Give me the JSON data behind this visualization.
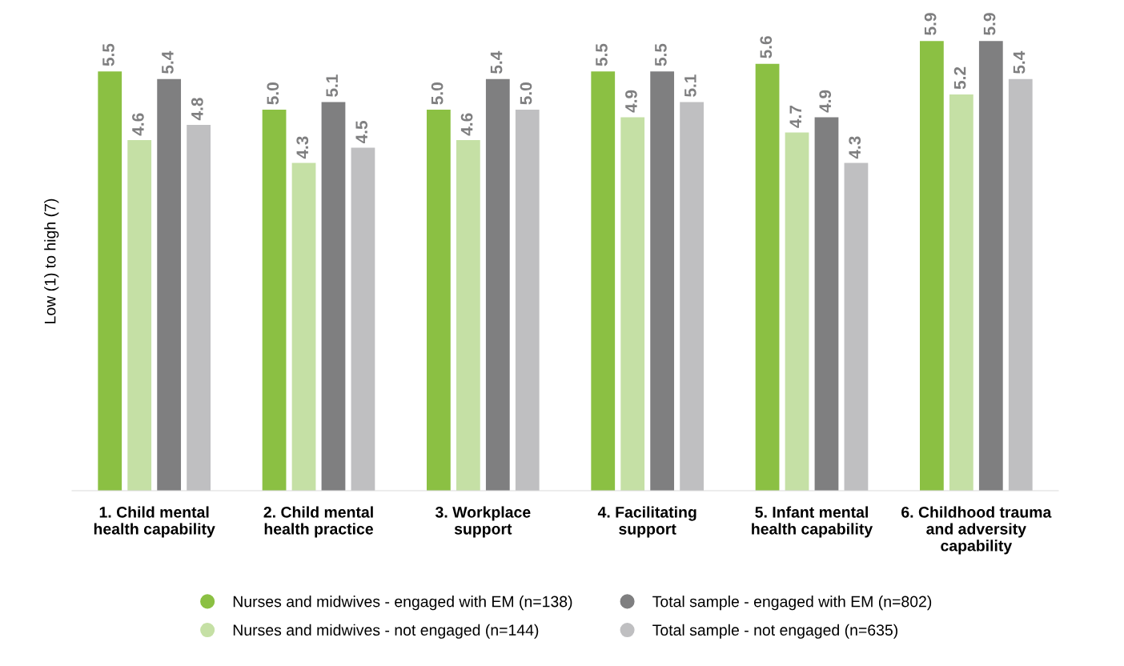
{
  "chart_data": {
    "type": "bar",
    "ylabel": "Low (1) to high (7)",
    "categories": [
      "1. Child mental health capability",
      "2. Child mental health practice",
      "3. Workplace support",
      "4. Facilitating support",
      "5. Infant mental health capability",
      "6. Childhood trauma and adversity capability"
    ],
    "series": [
      {
        "name": "Nurses and midwives - engaged with EM (n=138)",
        "color": "#8bc043",
        "values": [
          5.5,
          5.0,
          5.0,
          5.5,
          5.6,
          5.9
        ],
        "value_labels": [
          "5.5",
          "5.0",
          "5.0",
          "5.5",
          "5.6",
          "5.9"
        ]
      },
      {
        "name": "Nurses and midwives - not engaged (n=144)",
        "color": "#c5e0a5",
        "values": [
          4.6,
          4.3,
          4.6,
          4.9,
          4.7,
          5.2
        ],
        "value_labels": [
          "4.6",
          "4.3",
          "4.6",
          "4.9",
          "4.7",
          "5.2"
        ]
      },
      {
        "name": "Total sample - engaged with EM (n=802)",
        "color": "#7f7f80",
        "values": [
          5.4,
          5.1,
          5.4,
          5.5,
          4.9,
          5.9
        ],
        "value_labels": [
          "5.4",
          "5.1",
          "5.4",
          "5.5",
          "4.9",
          "5.9"
        ]
      },
      {
        "name": "Total sample - not engaged (n=635)",
        "color": "#bfbfc1",
        "values": [
          4.8,
          4.5,
          5.0,
          5.1,
          4.3,
          5.4
        ],
        "value_labels": [
          "4.8",
          "4.5",
          "5.0",
          "5.1",
          "4.3",
          "5.4"
        ]
      }
    ],
    "legend": "bottom",
    "grid": false,
    "tick_labels": "x"
  }
}
